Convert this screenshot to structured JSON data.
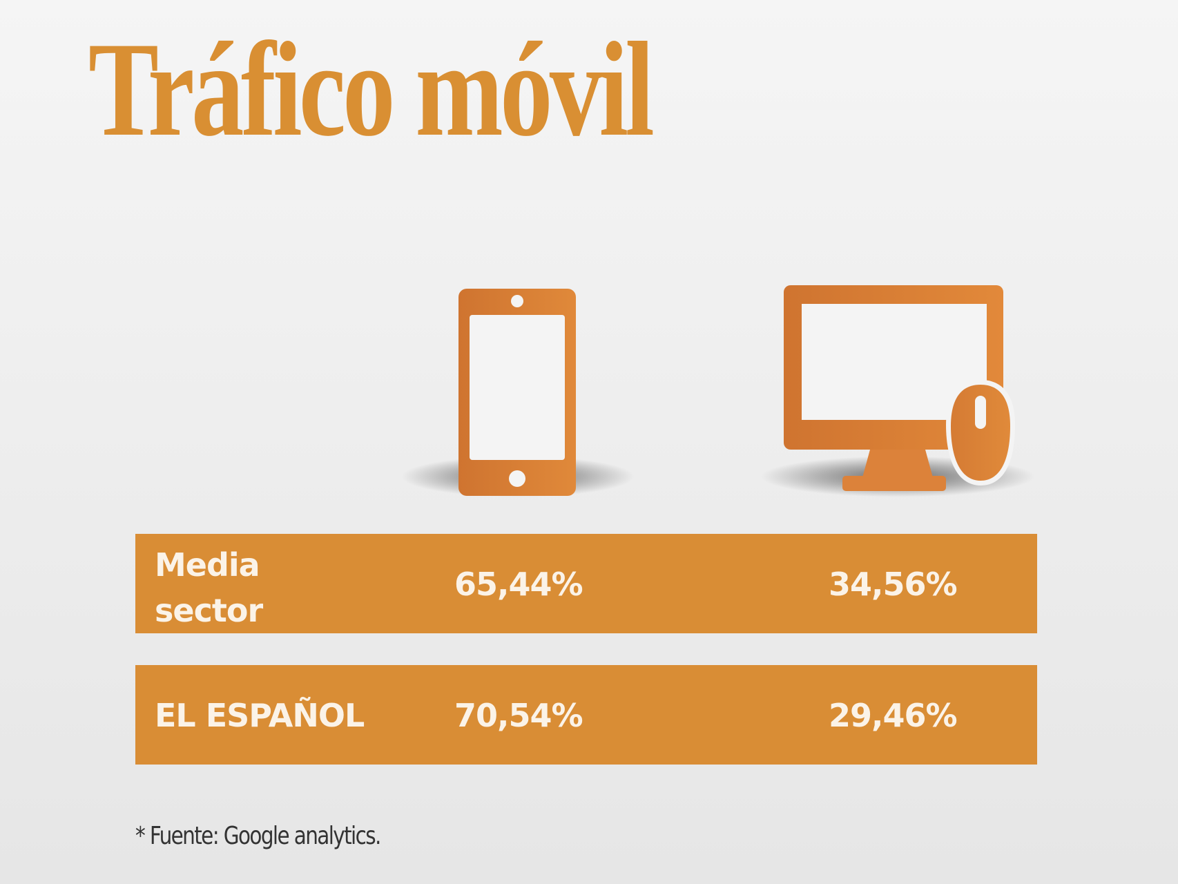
{
  "title": "Tráfico móvil",
  "colors": {
    "accent": "#d98d35",
    "title": "#d98f33",
    "cell_text": "#fbf3e8",
    "background": "#f0f0f0"
  },
  "icons": {
    "col1": "smartphone-icon",
    "col2": "desktop-with-mouse-icon"
  },
  "chart_data": {
    "type": "table",
    "columns": [
      "smartphone-icon",
      "desktop-with-mouse-icon"
    ],
    "rows": [
      {
        "label": "Media sector",
        "values": [
          "65,44%",
          "34,56%"
        ]
      },
      {
        "label": "EL ESPAÑOL",
        "values": [
          "70,54%",
          "29,46%"
        ]
      }
    ]
  },
  "footnote": "* Fuente: Google analytics."
}
